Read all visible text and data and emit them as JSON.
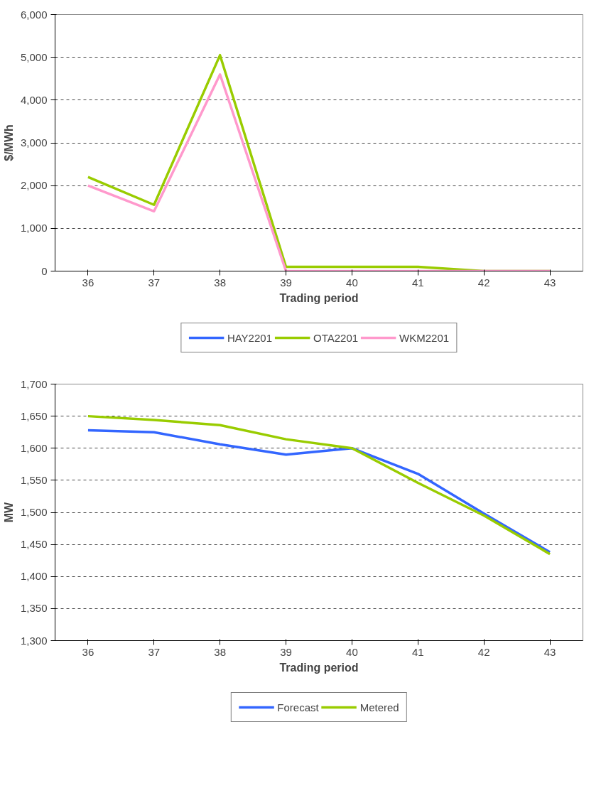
{
  "chart_data": [
    {
      "type": "line",
      "xlabel": "Trading period",
      "ylabel": "$/MWh",
      "categories": [
        "36",
        "37",
        "38",
        "39",
        "40",
        "41",
        "42",
        "43"
      ],
      "series": [
        {
          "name": "HAY2201",
          "color": "#3366ff",
          "values": [
            null,
            null,
            null,
            null,
            null,
            null,
            null,
            null
          ]
        },
        {
          "name": "OTA2201",
          "color": "#99cc00",
          "values": [
            2200,
            1550,
            5050,
            100,
            100,
            100,
            0,
            0
          ]
        },
        {
          "name": "WKM2201",
          "color": "#ff99cc",
          "values": [
            2000,
            1400,
            4600,
            0,
            0,
            0,
            0,
            0
          ]
        }
      ],
      "ylim": [
        0,
        6000
      ],
      "yticks": [
        {
          "value": 0,
          "label": "0"
        },
        {
          "value": 1000,
          "label": "1,000"
        },
        {
          "value": 2000,
          "label": "2,000"
        },
        {
          "value": 3000,
          "label": "3,000"
        },
        {
          "value": 4000,
          "label": "4,000"
        },
        {
          "value": 5000,
          "label": "5,000"
        },
        {
          "value": 6000,
          "label": "6,000"
        }
      ],
      "grid": "y",
      "legend": "bottom",
      "line_style": "solid"
    },
    {
      "type": "line",
      "xlabel": "Trading period",
      "ylabel": "MW",
      "categories": [
        "36",
        "37",
        "38",
        "39",
        "40",
        "41",
        "42",
        "43"
      ],
      "series": [
        {
          "name": "Forecast",
          "color": "#3366ff",
          "values": [
            1628,
            1625,
            1606,
            1590,
            1600,
            1560,
            1498,
            1438
          ]
        },
        {
          "name": "Metered",
          "color": "#99cc00",
          "values": [
            1650,
            1644,
            1636,
            1614,
            1600,
            1546,
            1495,
            1435
          ]
        }
      ],
      "ylim": [
        1300,
        1700
      ],
      "yticks": [
        {
          "value": 1300,
          "label": "1,300"
        },
        {
          "value": 1350,
          "label": "1,350"
        },
        {
          "value": 1400,
          "label": "1,400"
        },
        {
          "value": 1450,
          "label": "1,450"
        },
        {
          "value": 1500,
          "label": "1,500"
        },
        {
          "value": 1550,
          "label": "1,550"
        },
        {
          "value": 1600,
          "label": "1,600"
        },
        {
          "value": 1650,
          "label": "1,650"
        },
        {
          "value": 1700,
          "label": "1,700"
        }
      ],
      "grid": "y",
      "legend": "bottom",
      "line_style": "solid"
    }
  ]
}
